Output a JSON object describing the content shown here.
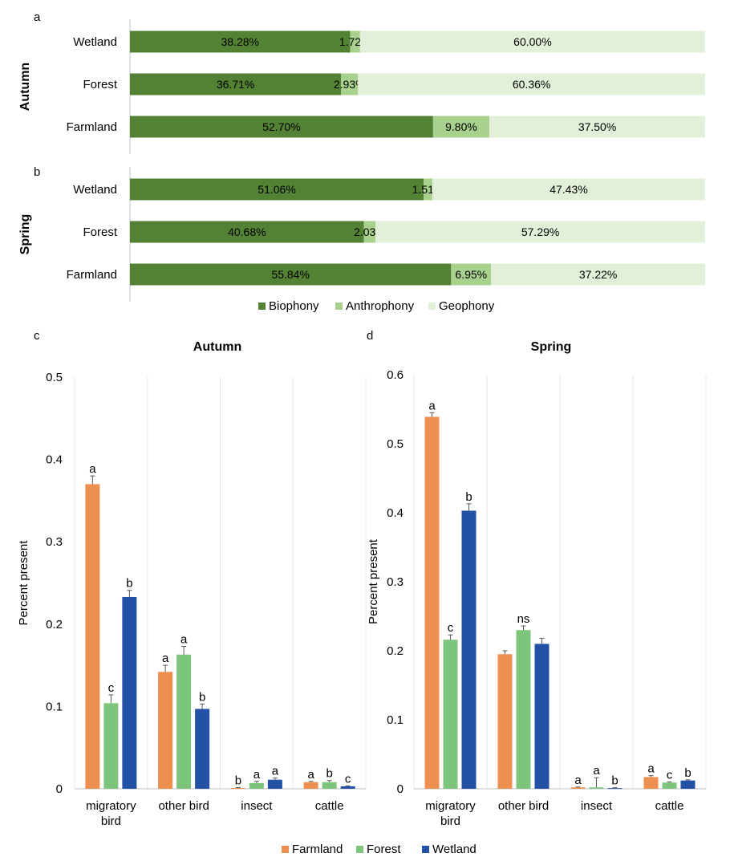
{
  "colors": {
    "biophony": "#548235",
    "anthrophony": "#a9d18e",
    "geophony": "#e2f0d9",
    "farmland": "#ed8f4f",
    "forest": "#7dc47d",
    "wetland": "#2351a6",
    "axis": "#bfbfbf",
    "grid": "#e7e7e7",
    "error_bar": "#595959"
  },
  "panel_labels": {
    "a": "a",
    "b": "b",
    "c": "c",
    "d": "d"
  },
  "legends": {
    "soundscape": [
      "Biophony",
      "Anthrophony",
      "Geophony"
    ],
    "habitat": [
      "Farmland",
      "Forest",
      "Wetland"
    ]
  },
  "chart_data": [
    {
      "type": "bar",
      "orientation": "horizontal",
      "stacked": "percent",
      "panel": "a",
      "group_label": "Autumn",
      "categories": [
        "Wetland",
        "Forest",
        "Farmland"
      ],
      "series": [
        {
          "name": "Biophony",
          "values": [
            38.28,
            36.71,
            52.7
          ],
          "labels": [
            "38.28%",
            "36.71%",
            "52.70%"
          ]
        },
        {
          "name": "Anthrophony",
          "values": [
            1.72,
            2.93,
            9.8
          ],
          "labels": [
            "1.72%",
            "2.93%",
            "9.80%"
          ]
        },
        {
          "name": "Geophony",
          "values": [
            60.0,
            60.36,
            37.5
          ],
          "labels": [
            "60.00%",
            "60.36%",
            "37.50%"
          ]
        }
      ],
      "xlim": [
        0,
        100
      ]
    },
    {
      "type": "bar",
      "orientation": "horizontal",
      "stacked": "percent",
      "panel": "b",
      "group_label": "Spring",
      "categories": [
        "Wetland",
        "Forest",
        "Farmland"
      ],
      "series": [
        {
          "name": "Biophony",
          "values": [
            51.06,
            40.68,
            55.84
          ],
          "labels": [
            "51.06%",
            "40.68%",
            "55.84%"
          ]
        },
        {
          "name": "Anthrophony",
          "values": [
            1.51,
            2.03,
            6.95
          ],
          "labels": [
            "1.51%",
            "2.03%",
            "6.95%"
          ]
        },
        {
          "name": "Geophony",
          "values": [
            47.43,
            57.29,
            37.22
          ],
          "labels": [
            "47.43%",
            "57.29%",
            "37.22%"
          ]
        }
      ],
      "xlim": [
        0,
        100
      ]
    },
    {
      "type": "bar",
      "panel": "c",
      "title": "Autumn",
      "ylabel": "Percent present",
      "ylim": [
        0,
        0.5
      ],
      "yticks": [
        "0",
        "0.1",
        "0.2",
        "0.3",
        "0.4",
        "0.5"
      ],
      "categories": [
        [
          "migratory",
          "bird"
        ],
        [
          "other bird"
        ],
        [
          "insect"
        ],
        [
          "cattle"
        ]
      ],
      "series": [
        {
          "name": "Farmland",
          "values": [
            0.37,
            0.142,
            0.001,
            0.008
          ],
          "errors": [
            0.01,
            0.008,
            0.0005,
            0.001
          ],
          "letters": [
            "a",
            "a",
            "b",
            "a"
          ]
        },
        {
          "name": "Forest",
          "values": [
            0.104,
            0.163,
            0.007,
            0.008
          ],
          "errors": [
            0.01,
            0.01,
            0.002,
            0.002
          ],
          "letters": [
            "c",
            "a",
            "a",
            "b"
          ]
        },
        {
          "name": "Wetland",
          "values": [
            0.233,
            0.097,
            0.011,
            0.003
          ],
          "errors": [
            0.008,
            0.006,
            0.002,
            0.0005
          ],
          "letters": [
            "b",
            "b",
            "a",
            "c"
          ]
        }
      ]
    },
    {
      "type": "bar",
      "panel": "d",
      "title": "Spring",
      "ylabel": "Percent present",
      "ylim": [
        0,
        0.6
      ],
      "yticks": [
        "0",
        "0.1",
        "0.2",
        "0.3",
        "0.4",
        "0.5",
        "0.6"
      ],
      "categories": [
        [
          "migratory",
          "bird"
        ],
        [
          "other bird"
        ],
        [
          "insect"
        ],
        [
          "cattle"
        ]
      ],
      "series": [
        {
          "name": "Farmland",
          "values": [
            0.539,
            0.195,
            0.002,
            0.017
          ],
          "errors": [
            0.006,
            0.005,
            0.0005,
            0.002
          ],
          "letters": [
            "a",
            "",
            "a",
            "a"
          ]
        },
        {
          "name": "Forest",
          "values": [
            0.216,
            0.23,
            0.002,
            0.009
          ],
          "errors": [
            0.007,
            0.006,
            0.014,
            0.001
          ],
          "letters": [
            "c",
            "ns",
            "a",
            "c"
          ]
        },
        {
          "name": "Wetland",
          "values": [
            0.403,
            0.21,
            0.001,
            0.012
          ],
          "errors": [
            0.01,
            0.008,
            0.0005,
            0.001
          ],
          "letters": [
            "b",
            "",
            "b",
            "b"
          ]
        }
      ]
    }
  ]
}
